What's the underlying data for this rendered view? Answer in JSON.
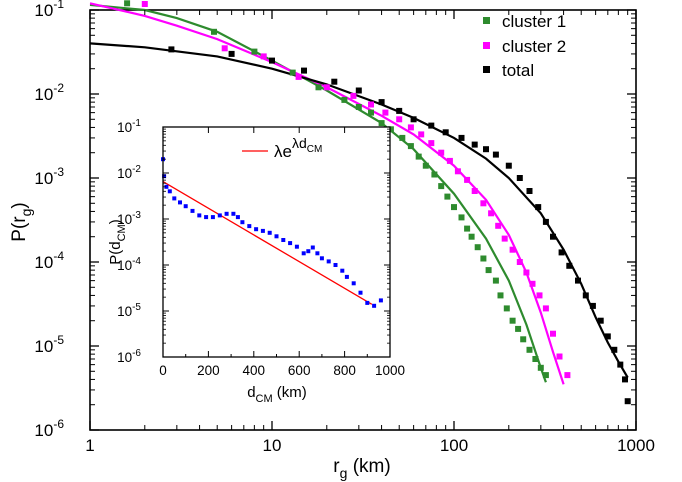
{
  "chart_data": [
    {
      "type": "scatter",
      "xscale": "log",
      "yscale": "log",
      "xlim": [
        1,
        1000
      ],
      "ylim": [
        1e-06,
        0.1
      ],
      "xlabel": {
        "base": "r",
        "sub": "g",
        "rest": " (km)"
      },
      "ylabel": {
        "base": "P(r",
        "sub": "g",
        "rest": ")"
      },
      "x_ticks": [
        {
          "value": 1,
          "label": "1"
        },
        {
          "value": 10,
          "label": "10"
        },
        {
          "value": 100,
          "label": "100"
        },
        {
          "value": 1000,
          "label": "1000"
        }
      ],
      "y_ticks": [
        {
          "value": 1e-06,
          "base": "10",
          "exp": "-6"
        },
        {
          "value": 1e-05,
          "base": "10",
          "exp": "-5"
        },
        {
          "value": 0.0001,
          "base": "10",
          "exp": "-4"
        },
        {
          "value": 0.001,
          "base": "10",
          "exp": "-3"
        },
        {
          "value": 0.01,
          "base": "10",
          "exp": "-2"
        },
        {
          "value": 0.1,
          "base": "10",
          "exp": "-1"
        }
      ],
      "legend_position": "top-right",
      "series": [
        {
          "name": "cluster 1",
          "color": "#2e8b2e",
          "points": [
            [
              1.6,
              0.12
            ],
            [
              4.8,
              0.055
            ],
            [
              8,
              0.032
            ],
            [
              13,
              0.018
            ],
            [
              18,
              0.012
            ],
            [
              25,
              0.0085
            ],
            [
              30,
              0.007
            ],
            [
              35,
              0.006
            ],
            [
              40,
              0.0045
            ],
            [
              45,
              0.0038
            ],
            [
              52,
              0.003
            ],
            [
              58,
              0.0024
            ],
            [
              64,
              0.0018
            ],
            [
              70,
              0.0014
            ],
            [
              78,
              0.0011
            ],
            [
              85,
              0.0008
            ],
            [
              92,
              0.0006
            ],
            [
              100,
              0.00045
            ],
            [
              110,
              0.00034
            ],
            [
              118,
              0.00025
            ],
            [
              125,
              0.0002
            ],
            [
              135,
              0.00015
            ],
            [
              145,
              0.00011
            ],
            [
              155,
              8e-05
            ],
            [
              170,
              6e-05
            ],
            [
              180,
              4e-05
            ],
            [
              195,
              2.8e-05
            ],
            [
              210,
              2e-05
            ],
            [
              225,
              1.6e-05
            ],
            [
              240,
              1.2e-05
            ],
            [
              260,
              9e-06
            ],
            [
              280,
              7e-06
            ],
            [
              300,
              5.5e-06
            ],
            [
              320,
              4.5e-06
            ]
          ],
          "fit": [
            [
              1,
              0.115
            ],
            [
              2,
              0.1
            ],
            [
              3,
              0.08
            ],
            [
              5,
              0.055
            ],
            [
              10,
              0.025
            ],
            [
              20,
              0.011
            ],
            [
              40,
              0.0045
            ],
            [
              60,
              0.0022
            ],
            [
              100,
              0.00065
            ],
            [
              150,
              0.00019
            ],
            [
              200,
              6e-05
            ],
            [
              250,
              1.8e-05
            ],
            [
              300,
              5.5e-06
            ],
            [
              320,
              3.7e-06
            ]
          ]
        },
        {
          "name": "cluster 2",
          "color": "#ff00ff",
          "points": [
            [
              2,
              0.118
            ],
            [
              5.5,
              0.035
            ],
            [
              9,
              0.028
            ],
            [
              14,
              0.016
            ],
            [
              20,
              0.012
            ],
            [
              28,
              0.0095
            ],
            [
              35,
              0.0075
            ],
            [
              42,
              0.006
            ],
            [
              50,
              0.005
            ],
            [
              58,
              0.004
            ],
            [
              66,
              0.0033
            ],
            [
              75,
              0.0026
            ],
            [
              85,
              0.002
            ],
            [
              95,
              0.0016
            ],
            [
              105,
              0.0012
            ],
            [
              118,
              0.00095
            ],
            [
              130,
              0.0007
            ],
            [
              145,
              0.0005
            ],
            [
              160,
              0.00038
            ],
            [
              175,
              0.00027
            ],
            [
              190,
              0.00019
            ],
            [
              210,
              0.00014
            ],
            [
              230,
              0.0001
            ],
            [
              250,
              7.5e-05
            ],
            [
              270,
              5.5e-05
            ],
            [
              295,
              4e-05
            ],
            [
              320,
              2.8e-05
            ],
            [
              350,
              1.4e-05
            ],
            [
              380,
              7.5e-06
            ],
            [
              420,
              4.5e-06
            ]
          ],
          "fit": [
            [
              1,
              0.12
            ],
            [
              2,
              0.085
            ],
            [
              3,
              0.065
            ],
            [
              5,
              0.045
            ],
            [
              10,
              0.024
            ],
            [
              20,
              0.012
            ],
            [
              40,
              0.0055
            ],
            [
              60,
              0.0033
            ],
            [
              100,
              0.0014
            ],
            [
              150,
              0.00055
            ],
            [
              200,
              0.00021
            ],
            [
              250,
              7.5e-05
            ],
            [
              300,
              2.5e-05
            ],
            [
              350,
              8.5e-06
            ],
            [
              400,
              3.5e-06
            ]
          ]
        },
        {
          "name": "total",
          "color": "#000000",
          "points": [
            [
              2.8,
              0.034
            ],
            [
              6,
              0.03
            ],
            [
              10,
              0.025
            ],
            [
              15,
              0.019
            ],
            [
              22,
              0.014
            ],
            [
              30,
              0.011
            ],
            [
              40,
              0.008
            ],
            [
              50,
              0.0063
            ],
            [
              60,
              0.005
            ],
            [
              75,
              0.0042
            ],
            [
              90,
              0.0035
            ],
            [
              110,
              0.003
            ],
            [
              130,
              0.0025
            ],
            [
              150,
              0.0022
            ],
            [
              170,
              0.0019
            ],
            [
              200,
              0.0014
            ],
            [
              230,
              0.001
            ],
            [
              260,
              0.0007
            ],
            [
              290,
              0.00045
            ],
            [
              320,
              0.0003
            ],
            [
              350,
              0.0002
            ],
            [
              390,
              0.00013
            ],
            [
              430,
              9e-05
            ],
            [
              480,
              6e-05
            ],
            [
              530,
              4e-05
            ],
            [
              580,
              3e-05
            ],
            [
              640,
              2e-05
            ],
            [
              700,
              1.3e-05
            ],
            [
              760,
              9e-06
            ],
            [
              820,
              6e-06
            ],
            [
              870,
              4e-06
            ],
            [
              900,
              2.2e-06
            ]
          ],
          "fit": [
            [
              1,
              0.04
            ],
            [
              2,
              0.036
            ],
            [
              5,
              0.028
            ],
            [
              10,
              0.02
            ],
            [
              20,
              0.013
            ],
            [
              40,
              0.0075
            ],
            [
              60,
              0.0052
            ],
            [
              100,
              0.003
            ],
            [
              150,
              0.0017
            ],
            [
              200,
              0.001
            ],
            [
              300,
              0.00038
            ],
            [
              400,
              0.00014
            ],
            [
              500,
              5.5e-05
            ],
            [
              600,
              2.2e-05
            ],
            [
              700,
              1.1e-05
            ],
            [
              800,
              6.5e-06
            ],
            [
              900,
              4.2e-06
            ]
          ]
        }
      ]
    },
    {
      "type": "scatter",
      "inset": true,
      "yscale": "log",
      "xlim": [
        0,
        1000
      ],
      "ylim": [
        1e-06,
        0.1
      ],
      "xlabel": {
        "base": "d",
        "sub": "CM",
        "rest": " (km)"
      },
      "ylabel": {
        "base": "P(d",
        "sub": "CM",
        "rest": ")"
      },
      "x_ticks": [
        {
          "value": 0,
          "label": "0"
        },
        {
          "value": 200,
          "label": "200"
        },
        {
          "value": 400,
          "label": "400"
        },
        {
          "value": 600,
          "label": "600"
        },
        {
          "value": 800,
          "label": "800"
        },
        {
          "value": 1000,
          "label": "1000"
        }
      ],
      "y_ticks": [
        {
          "value": 1e-06,
          "base": "10",
          "exp": "-6"
        },
        {
          "value": 1e-05,
          "base": "10",
          "exp": "-5"
        },
        {
          "value": 0.0001,
          "base": "10",
          "exp": "-4"
        },
        {
          "value": 0.001,
          "base": "10",
          "exp": "-3"
        },
        {
          "value": 0.01,
          "base": "10",
          "exp": "-2"
        },
        {
          "value": 0.1,
          "base": "10",
          "exp": "-1"
        }
      ],
      "legend": {
        "base": "λe",
        "sup": "λd",
        "supsub": "CM",
        "color": "#ff0000"
      },
      "fit_line": {
        "color": "#ff0000",
        "points": [
          [
            0,
            0.0065
          ],
          [
            920,
            1.4e-05
          ]
        ]
      },
      "series": [
        {
          "color": "#0000ff",
          "points": [
            [
              0,
              0.02
            ],
            [
              5,
              0.0085
            ],
            [
              15,
              0.005
            ],
            [
              30,
              0.004
            ],
            [
              50,
              0.0028
            ],
            [
              75,
              0.0023
            ],
            [
              100,
              0.0019
            ],
            [
              130,
              0.0015
            ],
            [
              160,
              0.0012
            ],
            [
              190,
              0.0011
            ],
            [
              220,
              0.0011
            ],
            [
              250,
              0.0012
            ],
            [
              280,
              0.0013
            ],
            [
              310,
              0.0013
            ],
            [
              330,
              0.0011
            ],
            [
              350,
              0.00085
            ],
            [
              380,
              0.0007
            ],
            [
              410,
              0.0006
            ],
            [
              440,
              0.00055
            ],
            [
              470,
              0.0005
            ],
            [
              500,
              0.00042
            ],
            [
              530,
              0.00035
            ],
            [
              560,
              0.0003
            ],
            [
              590,
              0.00025
            ],
            [
              620,
              0.00018
            ],
            [
              640,
              0.0002
            ],
            [
              660,
              0.00024
            ],
            [
              680,
              0.00018
            ],
            [
              700,
              0.00014
            ],
            [
              730,
              0.00012
            ],
            [
              760,
              0.0001
            ],
            [
              790,
              7.5e-05
            ],
            [
              810,
              5.5e-05
            ],
            [
              840,
              4e-05
            ],
            [
              870,
              2.5e-05
            ],
            [
              900,
              1.5e-05
            ],
            [
              930,
              1.3e-05
            ],
            [
              960,
              1.7e-05
            ]
          ]
        }
      ]
    }
  ]
}
